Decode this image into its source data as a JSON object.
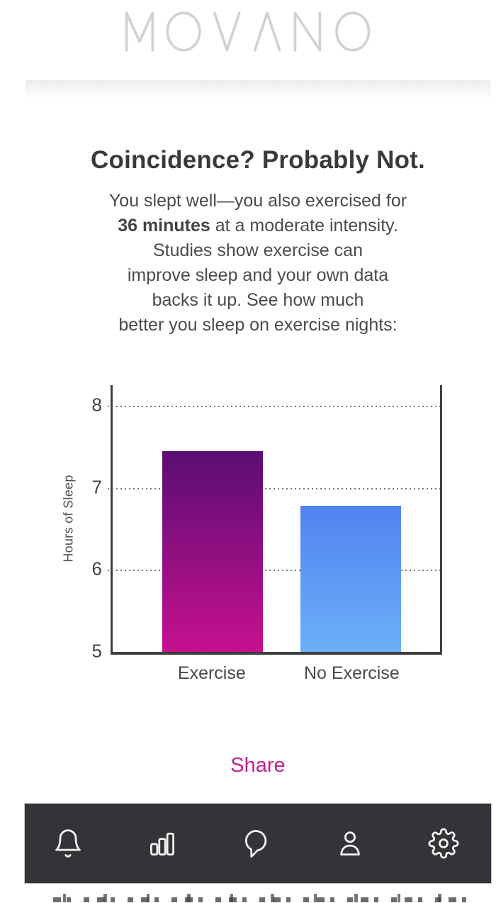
{
  "header": {
    "logo_text": "MOVANO"
  },
  "content": {
    "headline": "Coincidence? Probably Not.",
    "paragraph": {
      "line1": "You slept well—you also exercised for",
      "line2_bold": "36 minutes",
      "line2_rest": " at a moderate intensity.",
      "line3": "Studies show exercise can",
      "line4": "improve sleep and your own data",
      "line5": "backs it up. See how much",
      "line6": "better you sleep on exercise nights:"
    },
    "share_label": "Share"
  },
  "chart_data": {
    "type": "bar",
    "categories": [
      "Exercise",
      "No Exercise"
    ],
    "values": [
      7.45,
      6.78
    ],
    "title": "",
    "xlabel": "",
    "ylabel": "Hours of Sleep",
    "ylim": [
      5,
      8.25
    ],
    "yticks": [
      8,
      7,
      6,
      5
    ],
    "gridlines": [
      8,
      7,
      6
    ],
    "grid_style": "dotted horizontal",
    "legend": "none",
    "bar_colors": [
      {
        "name": "exercise",
        "gradient_top": "#5a0e73",
        "gradient_bottom": "#c6108f"
      },
      {
        "name": "no-exercise",
        "gradient_top": "#5182f0",
        "gradient_bottom": "#6cb0f7"
      }
    ]
  },
  "nav": {
    "items": [
      {
        "icon": "bell-icon"
      },
      {
        "icon": "bar-chart-icon"
      },
      {
        "icon": "chat-bubble-icon"
      },
      {
        "icon": "profile-icon"
      },
      {
        "icon": "gear-icon"
      }
    ]
  },
  "colors": {
    "headline": "#3a3a3c",
    "body_text": "#4b4b4d",
    "share": "#c21f8e",
    "logo": "#d2d2d2",
    "axis": "#3f3f41",
    "nav_background": "#343438",
    "nav_icon": "#f2f2f2"
  }
}
